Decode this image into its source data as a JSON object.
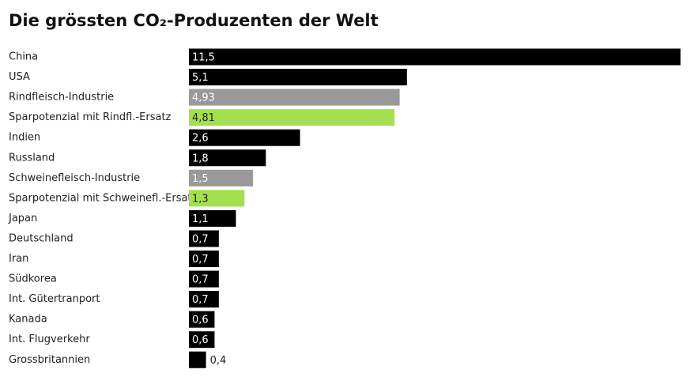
{
  "chart_data": {
    "type": "hbar",
    "title": "Die grössten CO₂-Produzenten der Welt",
    "categories": [
      "China",
      "USA",
      "Rindfleisch-Industrie",
      "Sparpotenzial mit Rindfl.-Ersatz",
      "Indien",
      "Russland",
      "Schweinefleisch-Industrie",
      "Sparpotenzial mit Schweinefl.-Ersatz",
      "Japan",
      "Deutschland",
      "Iran",
      "Südkorea",
      "Int. Gütertranport",
      "Kanada",
      "Int. Flugverkehr",
      "Grossbritannien"
    ],
    "values": [
      11.5,
      5.1,
      4.93,
      4.81,
      2.6,
      1.8,
      1.5,
      1.3,
      1.1,
      0.7,
      0.7,
      0.7,
      0.7,
      0.6,
      0.6,
      0.4
    ],
    "value_labels": [
      "11,5",
      "5,1",
      "4,93",
      "4,81",
      "2,6",
      "1,8",
      "1,5",
      "1,3",
      "1,1",
      "0,7",
      "0,7",
      "0,7",
      "0,7",
      "0,6",
      "0,6",
      "0,4"
    ],
    "colors": [
      "#000000",
      "#000000",
      "#999999",
      "#a3e04f",
      "#000000",
      "#000000",
      "#999999",
      "#a3e04f",
      "#000000",
      "#000000",
      "#000000",
      "#000000",
      "#000000",
      "#000000",
      "#000000",
      "#000000"
    ]
  }
}
